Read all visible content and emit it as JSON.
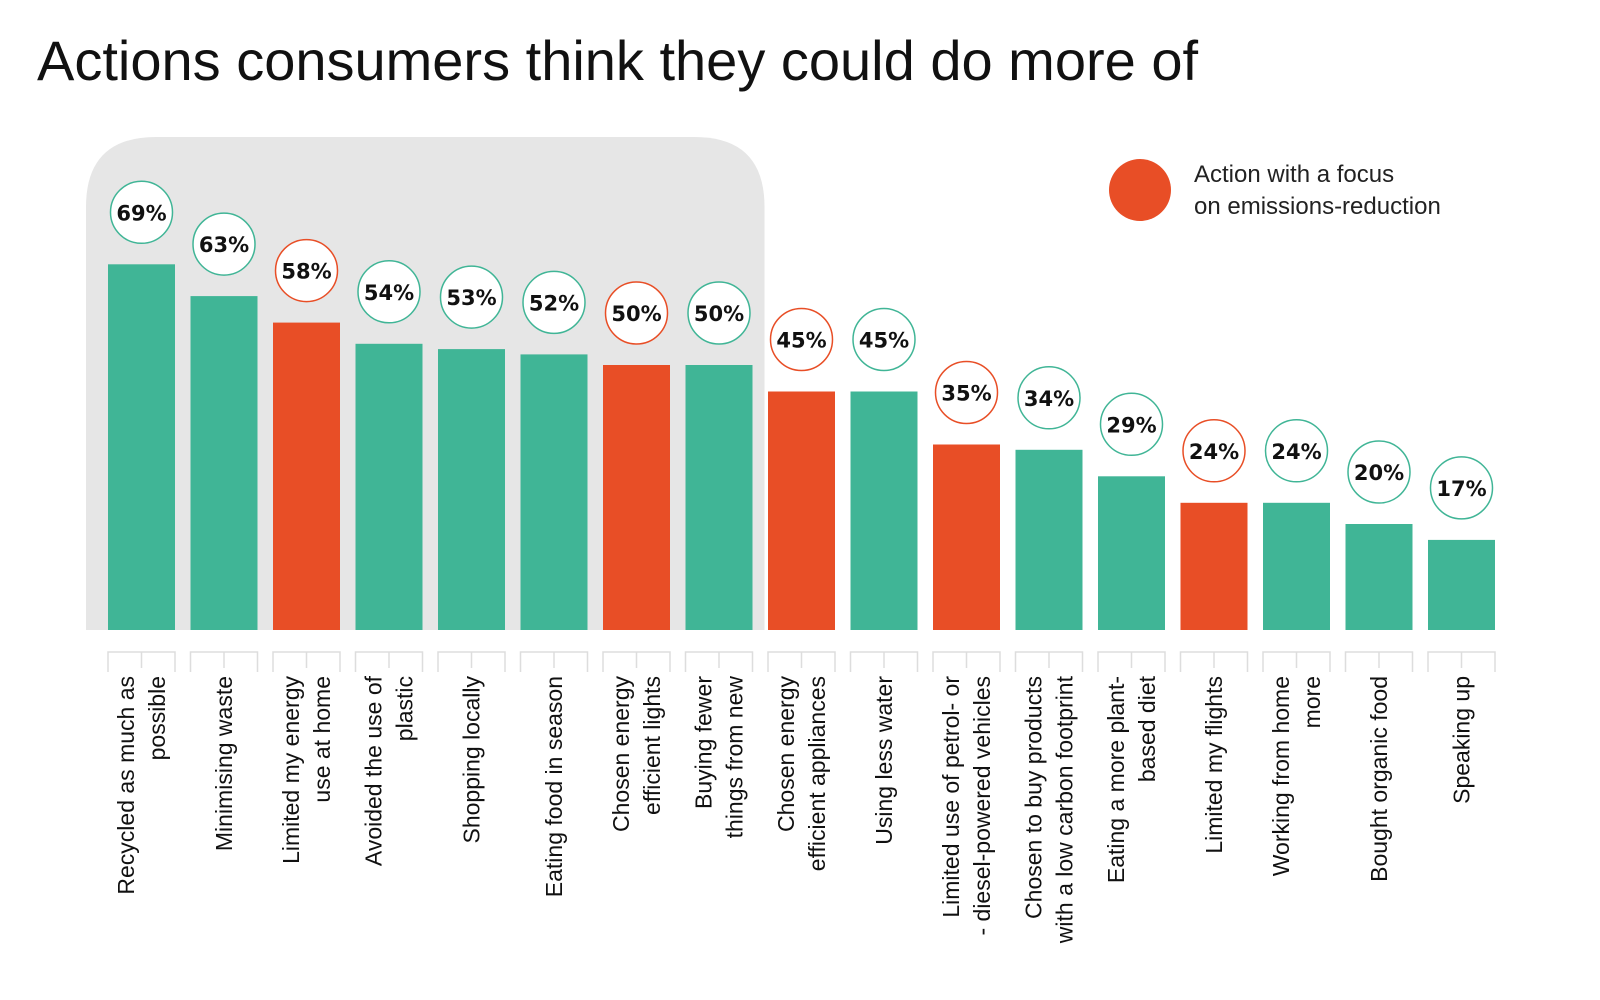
{
  "chart_data": {
    "type": "bar",
    "title": "Actions consumers think they could do more of",
    "xlabel": "",
    "ylabel": "",
    "ylim": [
      0,
      100
    ],
    "value_suffix": "%",
    "legend": {
      "label_lines": [
        "Action with a focus",
        "on emissions-reduction"
      ],
      "color": "#e84e26",
      "position": "top-right"
    },
    "colors": {
      "default": "#40b596",
      "emissions": "#e84e26",
      "highlight_bg": "#e6e6e6"
    },
    "highlight_range": [
      0,
      7
    ],
    "categories": [
      [
        "Recycled as much as",
        "possible"
      ],
      [
        "Minimising waste"
      ],
      [
        "Limited my energy",
        "use at home"
      ],
      [
        "Avoided the use of",
        "plastic"
      ],
      [
        "Shopping locally"
      ],
      [
        "Eating food in season"
      ],
      [
        "Chosen energy",
        "efficient lights"
      ],
      [
        "Buying fewer",
        "things from new"
      ],
      [
        "Chosen energy",
        "efficient appliances"
      ],
      [
        "Using less water"
      ],
      [
        "Limited use of petrol- or",
        "- diesel-powered vehicles"
      ],
      [
        "Chosen to buy products",
        "with a low carbon footprint"
      ],
      [
        "Eating a more plant-",
        "based diet"
      ],
      [
        "Limited my flights"
      ],
      [
        "Working from home",
        "more"
      ],
      [
        "Bought organic food"
      ],
      [
        "Speaking up"
      ]
    ],
    "values": [
      69,
      63,
      58,
      54,
      53,
      52,
      50,
      50,
      45,
      45,
      35,
      34,
      29,
      24,
      24,
      20,
      17
    ],
    "emissions_focus": [
      false,
      false,
      true,
      false,
      false,
      false,
      true,
      false,
      true,
      false,
      true,
      false,
      false,
      true,
      false,
      false,
      false
    ]
  }
}
